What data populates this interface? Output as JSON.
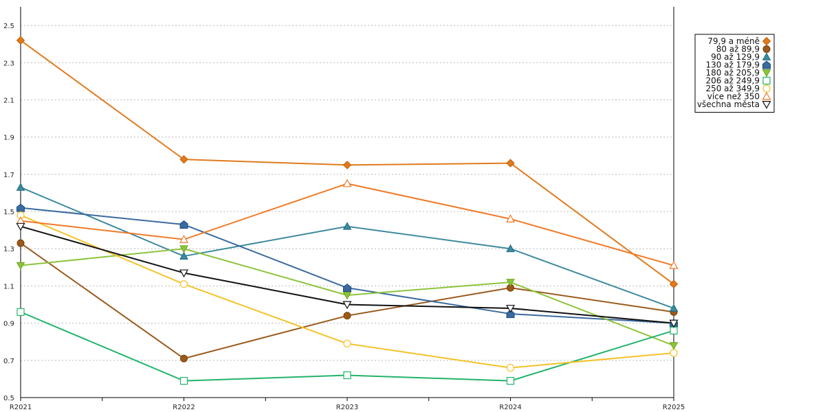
{
  "chart_data": {
    "type": "line",
    "title": "",
    "xlabel": "",
    "ylabel": "",
    "categories": [
      "R2021",
      "R2022",
      "R2023",
      "R2024",
      "R2025"
    ],
    "ylim": [
      0.5,
      2.6
    ],
    "yticks": [
      0.5,
      0.7,
      0.9,
      1.1,
      1.3,
      1.5,
      1.7,
      1.9,
      2.1,
      2.3,
      2.5
    ],
    "ytick_labels": [
      "0.5",
      "0.7",
      "0.9",
      "1.1",
      "1.3",
      "1.5",
      "1.7",
      "1.9",
      "2.1",
      "2.3",
      "2.5"
    ],
    "grid": "horizontal dotted",
    "legend_position": "top-right",
    "series": [
      {
        "name": "79,9 a méně",
        "values": [
          2.42,
          1.78,
          1.75,
          1.76,
          1.11
        ],
        "color": "#e07a1c",
        "marker": "diamond"
      },
      {
        "name": "80 až 89,9",
        "values": [
          1.33,
          0.71,
          0.94,
          1.09,
          0.96
        ],
        "color": "#9a5a1c",
        "marker": "circle"
      },
      {
        "name": "90 až 129,9",
        "values": [
          1.63,
          1.26,
          1.42,
          1.3,
          0.98
        ],
        "color": "#3d8a9e",
        "marker": "triangle"
      },
      {
        "name": "130 až 179,9",
        "values": [
          1.52,
          1.43,
          1.09,
          0.95,
          0.9
        ],
        "color": "#3a6a9e",
        "marker": "pentagon"
      },
      {
        "name": "180 až 205,9",
        "values": [
          1.21,
          1.3,
          1.05,
          1.12,
          0.78
        ],
        "color": "#8cc43a",
        "marker": "triangle-down"
      },
      {
        "name": "206 až 249,9",
        "values": [
          0.96,
          0.59,
          0.62,
          0.59,
          0.86
        ],
        "color": "#22b36a",
        "marker": "square-open"
      },
      {
        "name": "250 až 349,9",
        "values": [
          1.48,
          1.11,
          0.79,
          0.66,
          0.74
        ],
        "color": "#f5c228",
        "marker": "circle-open"
      },
      {
        "name": "více než 350",
        "values": [
          1.45,
          1.35,
          1.65,
          1.46,
          1.21
        ],
        "color": "#f07a28",
        "marker": "triangle-open"
      },
      {
        "name": "všechna města",
        "values": [
          1.42,
          1.17,
          1.0,
          0.98,
          0.9
        ],
        "color": "#111111",
        "marker": "triangle-down-open"
      }
    ]
  }
}
